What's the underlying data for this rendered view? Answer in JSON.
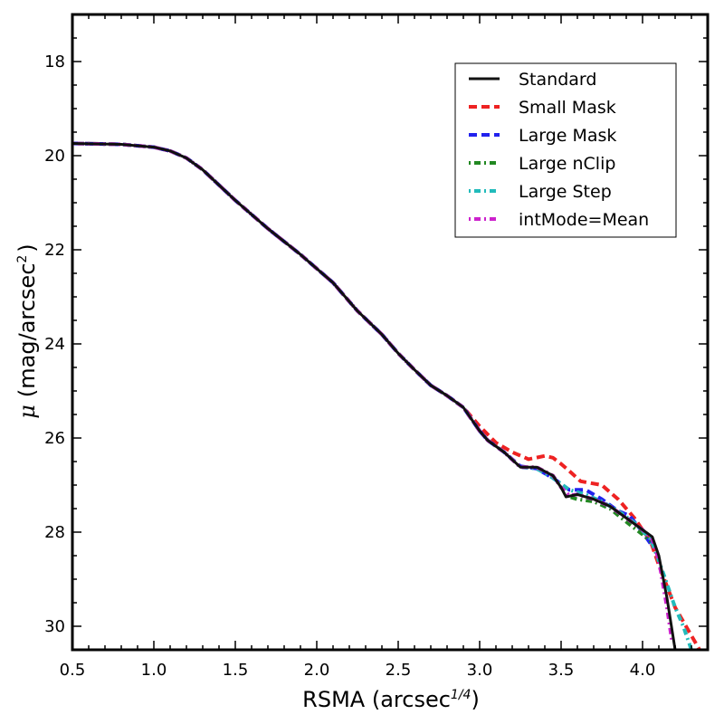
{
  "chart_data": {
    "type": "line",
    "xlabel": "RSMA (arcsec",
    "xlabel_exp": "1/4",
    "xlabel_close": ")",
    "ylabel_mu": "μ",
    "ylabel": "(mag/arcsec",
    "ylabel_exp": "2",
    "ylabel_close": ")",
    "xlim": [
      0.5,
      4.4
    ],
    "ylim": [
      30.5,
      17.0
    ],
    "y_inverted": true,
    "grid": false,
    "legend_position": "upper-right",
    "x_ticks": [
      0.5,
      1.0,
      1.5,
      2.0,
      2.5,
      3.0,
      3.5,
      4.0
    ],
    "x_tick_labels": [
      "0.5",
      "1.0",
      "1.5",
      "2.0",
      "2.5",
      "3.0",
      "3.5",
      "4.0"
    ],
    "y_ticks": [
      18,
      20,
      22,
      24,
      26,
      28,
      30
    ],
    "y_tick_labels": [
      "18",
      "20",
      "22",
      "24",
      "26",
      "28",
      "30"
    ],
    "series": [
      {
        "name": "Standard",
        "color": "#111111",
        "dash": "solid",
        "points": [
          [
            0.5,
            19.74
          ],
          [
            0.8,
            19.76
          ],
          [
            1.0,
            19.82
          ],
          [
            1.1,
            19.9
          ],
          [
            1.2,
            20.05
          ],
          [
            1.3,
            20.3
          ],
          [
            1.5,
            20.95
          ],
          [
            1.7,
            21.55
          ],
          [
            1.9,
            22.1
          ],
          [
            2.1,
            22.7
          ],
          [
            2.25,
            23.3
          ],
          [
            2.4,
            23.8
          ],
          [
            2.5,
            24.2
          ],
          [
            2.6,
            24.55
          ],
          [
            2.7,
            24.88
          ],
          [
            2.8,
            25.1
          ],
          [
            2.9,
            25.35
          ],
          [
            3.0,
            25.85
          ],
          [
            3.05,
            26.05
          ],
          [
            3.15,
            26.3
          ],
          [
            3.25,
            26.62
          ],
          [
            3.35,
            26.62
          ],
          [
            3.45,
            26.8
          ],
          [
            3.5,
            27.05
          ],
          [
            3.53,
            27.25
          ],
          [
            3.6,
            27.2
          ],
          [
            3.7,
            27.3
          ],
          [
            3.8,
            27.45
          ],
          [
            3.9,
            27.7
          ],
          [
            4.0,
            27.95
          ],
          [
            4.06,
            28.1
          ],
          [
            4.1,
            28.5
          ],
          [
            4.15,
            29.4
          ],
          [
            4.2,
            30.5
          ]
        ]
      },
      {
        "name": "Small Mask",
        "color": "#ee2222",
        "dash": "dashed",
        "points": [
          [
            0.5,
            19.74
          ],
          [
            0.8,
            19.76
          ],
          [
            1.0,
            19.82
          ],
          [
            1.1,
            19.9
          ],
          [
            1.2,
            20.05
          ],
          [
            1.3,
            20.3
          ],
          [
            1.5,
            20.95
          ],
          [
            1.7,
            21.55
          ],
          [
            1.9,
            22.1
          ],
          [
            2.1,
            22.7
          ],
          [
            2.25,
            23.3
          ],
          [
            2.4,
            23.8
          ],
          [
            2.5,
            24.2
          ],
          [
            2.6,
            24.55
          ],
          [
            2.7,
            24.88
          ],
          [
            2.8,
            25.1
          ],
          [
            2.9,
            25.35
          ],
          [
            3.0,
            25.75
          ],
          [
            3.1,
            26.1
          ],
          [
            3.2,
            26.3
          ],
          [
            3.3,
            26.45
          ],
          [
            3.4,
            26.38
          ],
          [
            3.45,
            26.42
          ],
          [
            3.5,
            26.55
          ],
          [
            3.55,
            26.7
          ],
          [
            3.62,
            26.92
          ],
          [
            3.75,
            27.0
          ],
          [
            3.85,
            27.3
          ],
          [
            3.95,
            27.7
          ],
          [
            4.05,
            28.2
          ],
          [
            4.1,
            28.7
          ],
          [
            4.2,
            29.6
          ],
          [
            4.25,
            29.9
          ],
          [
            4.3,
            30.2
          ],
          [
            4.35,
            30.5
          ]
        ]
      },
      {
        "name": "Large Mask",
        "color": "#2222ee",
        "dash": "dashed",
        "points": [
          [
            0.5,
            19.74
          ],
          [
            0.8,
            19.76
          ],
          [
            1.0,
            19.82
          ],
          [
            1.1,
            19.9
          ],
          [
            1.2,
            20.05
          ],
          [
            1.3,
            20.3
          ],
          [
            1.5,
            20.95
          ],
          [
            1.7,
            21.55
          ],
          [
            1.9,
            22.1
          ],
          [
            2.1,
            22.7
          ],
          [
            2.25,
            23.3
          ],
          [
            2.4,
            23.8
          ],
          [
            2.5,
            24.2
          ],
          [
            2.6,
            24.55
          ],
          [
            2.7,
            24.88
          ],
          [
            2.8,
            25.1
          ],
          [
            2.9,
            25.35
          ],
          [
            3.0,
            25.85
          ],
          [
            3.05,
            26.05
          ],
          [
            3.15,
            26.3
          ],
          [
            3.25,
            26.6
          ],
          [
            3.35,
            26.65
          ],
          [
            3.45,
            26.85
          ],
          [
            3.55,
            27.1
          ],
          [
            3.65,
            27.1
          ],
          [
            3.75,
            27.3
          ],
          [
            3.85,
            27.55
          ],
          [
            3.92,
            27.65
          ],
          [
            4.0,
            28.0
          ],
          [
            4.05,
            28.25
          ]
        ]
      },
      {
        "name": "Large nClip",
        "color": "#228822",
        "dash": "dotdash",
        "points": [
          [
            0.5,
            19.74
          ],
          [
            0.8,
            19.76
          ],
          [
            1.0,
            19.82
          ],
          [
            1.1,
            19.9
          ],
          [
            1.2,
            20.05
          ],
          [
            1.3,
            20.3
          ],
          [
            1.5,
            20.95
          ],
          [
            1.7,
            21.55
          ],
          [
            1.9,
            22.1
          ],
          [
            2.1,
            22.7
          ],
          [
            2.25,
            23.3
          ],
          [
            2.4,
            23.8
          ],
          [
            2.5,
            24.2
          ],
          [
            2.6,
            24.55
          ],
          [
            2.7,
            24.88
          ],
          [
            2.8,
            25.1
          ],
          [
            2.9,
            25.35
          ],
          [
            3.0,
            25.85
          ],
          [
            3.05,
            26.05
          ],
          [
            3.15,
            26.3
          ],
          [
            3.25,
            26.62
          ],
          [
            3.35,
            26.62
          ],
          [
            3.45,
            26.8
          ],
          [
            3.5,
            27.05
          ],
          [
            3.55,
            27.25
          ],
          [
            3.6,
            27.3
          ],
          [
            3.7,
            27.35
          ],
          [
            3.8,
            27.5
          ],
          [
            3.9,
            27.78
          ],
          [
            4.0,
            28.05
          ],
          [
            4.05,
            28.2
          ]
        ]
      },
      {
        "name": "Large Step",
        "color": "#22bbbb",
        "dash": "dotdash",
        "points": [
          [
            0.5,
            19.74
          ],
          [
            0.8,
            19.76
          ],
          [
            1.0,
            19.82
          ],
          [
            1.1,
            19.9
          ],
          [
            1.2,
            20.05
          ],
          [
            1.3,
            20.3
          ],
          [
            1.5,
            20.95
          ],
          [
            1.7,
            21.55
          ],
          [
            1.9,
            22.1
          ],
          [
            2.1,
            22.7
          ],
          [
            2.25,
            23.3
          ],
          [
            2.4,
            23.8
          ],
          [
            2.5,
            24.2
          ],
          [
            2.6,
            24.55
          ],
          [
            2.7,
            24.88
          ],
          [
            2.8,
            25.1
          ],
          [
            2.9,
            25.35
          ],
          [
            3.0,
            25.85
          ],
          [
            3.05,
            26.05
          ],
          [
            3.15,
            26.3
          ],
          [
            3.25,
            26.62
          ],
          [
            3.35,
            26.65
          ],
          [
            3.45,
            26.85
          ],
          [
            3.55,
            27.1
          ],
          [
            3.65,
            27.2
          ],
          [
            3.75,
            27.35
          ],
          [
            3.85,
            27.55
          ],
          [
            3.95,
            27.8
          ],
          [
            4.05,
            28.15
          ],
          [
            4.12,
            28.8
          ],
          [
            4.2,
            29.6
          ],
          [
            4.25,
            30.0
          ],
          [
            4.3,
            30.5
          ]
        ]
      },
      {
        "name": "intMode=Mean",
        "color": "#cc22cc",
        "dash": "dotdash",
        "points": [
          [
            0.5,
            19.74
          ],
          [
            0.8,
            19.76
          ],
          [
            1.0,
            19.82
          ],
          [
            1.1,
            19.9
          ],
          [
            1.2,
            20.05
          ],
          [
            1.3,
            20.3
          ],
          [
            1.5,
            20.95
          ],
          [
            1.7,
            21.55
          ],
          [
            1.9,
            22.1
          ],
          [
            2.1,
            22.7
          ],
          [
            2.25,
            23.3
          ],
          [
            2.4,
            23.8
          ],
          [
            2.5,
            24.2
          ],
          [
            2.6,
            24.55
          ],
          [
            2.7,
            24.88
          ],
          [
            2.8,
            25.1
          ],
          [
            2.9,
            25.35
          ],
          [
            3.0,
            25.85
          ],
          [
            3.05,
            26.05
          ],
          [
            3.15,
            26.3
          ],
          [
            3.25,
            26.62
          ],
          [
            3.35,
            26.62
          ],
          [
            3.45,
            26.8
          ],
          [
            3.5,
            27.05
          ],
          [
            3.55,
            27.22
          ],
          [
            3.6,
            27.2
          ],
          [
            3.7,
            27.3
          ],
          [
            3.8,
            27.45
          ],
          [
            3.9,
            27.7
          ],
          [
            4.0,
            27.95
          ],
          [
            4.06,
            28.15
          ],
          [
            4.1,
            28.6
          ],
          [
            4.15,
            29.6
          ],
          [
            4.18,
            30.3
          ]
        ]
      }
    ]
  }
}
